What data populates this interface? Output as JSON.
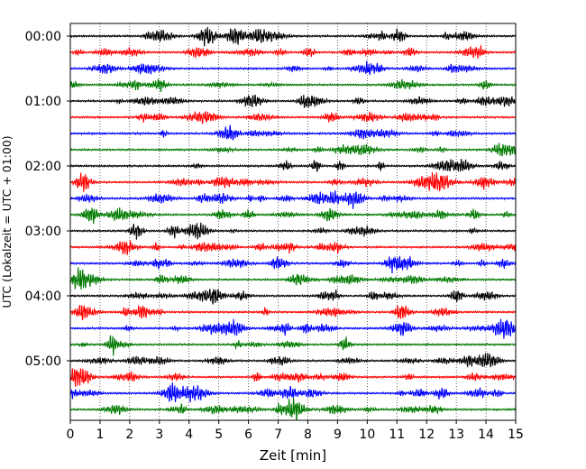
{
  "chart_data": {
    "type": "line",
    "title": "",
    "xlabel": "Zeit  [min]",
    "ylabel": "UTC (Lokalzeit = UTC + 01:00)",
    "xlim": [
      0,
      15
    ],
    "x_ticks": [
      "0",
      "1",
      "2",
      "3",
      "4",
      "5",
      "6",
      "7",
      "8",
      "9",
      "10",
      "11",
      "12",
      "13",
      "14",
      "15"
    ],
    "y_ticks": [
      "00:00",
      "01:00",
      "02:00",
      "03:00",
      "04:00",
      "05:00"
    ],
    "row_duration_min": 15,
    "rows_per_hour": 4,
    "row_count": 24,
    "colors": [
      "#000000",
      "#ff0000",
      "#0000ff",
      "#007a00"
    ],
    "grid": "vertical dotted at each minute",
    "legend": "none"
  }
}
